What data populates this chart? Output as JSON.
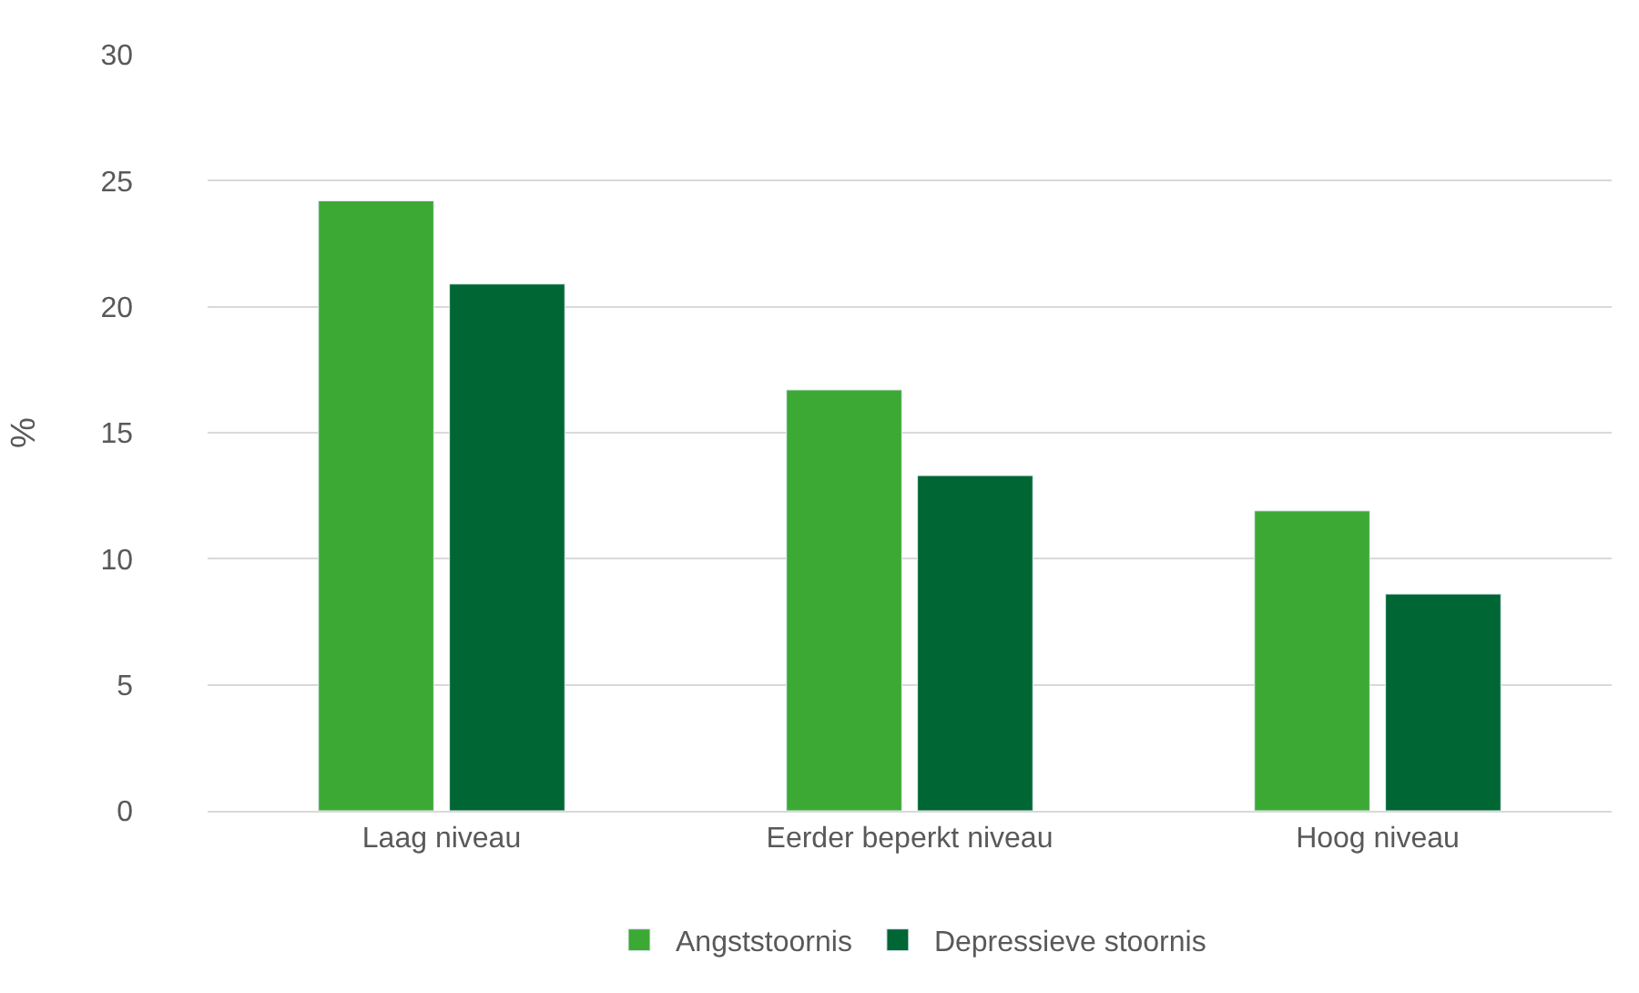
{
  "chart_data": {
    "type": "bar",
    "ylabel": "%",
    "categories": [
      "Laag niveau",
      "Eerder beperkt niveau",
      "Hoog niveau"
    ],
    "series": [
      {
        "name": "Angststoornis",
        "color": "#3da935",
        "values": [
          24.2,
          16.7,
          11.9
        ]
      },
      {
        "name": "Depressieve stoornis",
        "color": "#006633",
        "values": [
          20.9,
          13.3,
          8.6
        ]
      }
    ],
    "ylim": [
      0,
      30
    ],
    "yticks": [
      0,
      5,
      10,
      15,
      20,
      25,
      30
    ],
    "grid": "y",
    "legend": "bottom"
  }
}
